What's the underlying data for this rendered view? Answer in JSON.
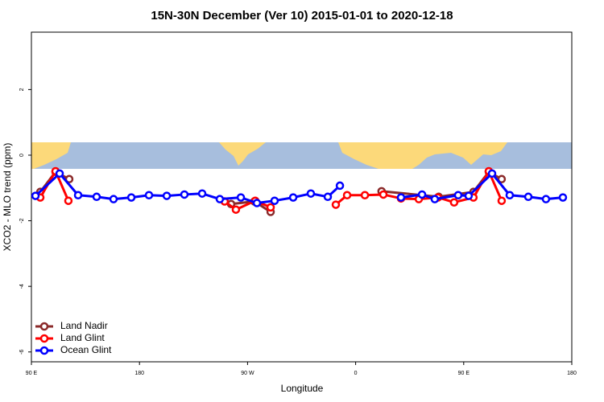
{
  "chart_data": {
    "type": "line",
    "title": "15N-30N December (Ver 10)   2015-01-01 to 2020-12-18",
    "x_label": "Longitude",
    "y_label": "XCO2 - MLO trend (ppm)",
    "xlim": [
      90,
      540
    ],
    "ylim": [
      -6.3,
      3.75
    ],
    "xticks": [
      {
        "value": 90,
        "label": "90 E"
      },
      180,
      {
        "value": 270,
        "label": "90 W"
      },
      {
        "value": 360,
        "label": "0"
      },
      {
        "value": 450,
        "label": "90 E"
      },
      {
        "value": 540,
        "label": "180"
      }
    ],
    "yticks": [
      -6,
      -4,
      -2,
      0,
      2
    ],
    "legend": "bottom-left",
    "series": [
      {
        "name": "Land Nadir",
        "color": "#8b2a2a",
        "x": [
          97.4,
          110.1,
          121.5,
          null,
          256.3,
          275.7,
          289.2,
          null,
          381.6,
          429.2,
          458.1,
          470.9,
          481.6
        ],
        "values": [
          -1.12,
          -0.51,
          -0.73,
          null,
          -1.49,
          -1.41,
          -1.73,
          null,
          -1.1,
          -1.27,
          -1.12,
          -0.51,
          -0.73
        ]
      },
      {
        "name": "Land Glint",
        "color": "#ff0000",
        "x": [
          97.4,
          110.1,
          120.8,
          null,
          250.9,
          260.3,
          276.4,
          289.2,
          null,
          343.5,
          352.9,
          367.7,
          383.1,
          397.8,
          412.6,
          428.5,
          442.0,
          458.1,
          470.9,
          481.6
        ],
        "values": [
          -1.29,
          -0.49,
          -1.39,
          null,
          -1.41,
          -1.66,
          -1.39,
          -1.59,
          null,
          -1.51,
          -1.22,
          -1.22,
          -1.2,
          -1.32,
          -1.34,
          -1.29,
          -1.44,
          -1.29,
          -0.49,
          -1.39
        ]
      },
      {
        "name": "Ocean Glint",
        "color": "#0000ff",
        "x": [
          93.4,
          113.5,
          128.9,
          144.3,
          158.4,
          173.2,
          187.9,
          202.7,
          217.4,
          232.2,
          246.9,
          264.4,
          277.8,
          292.5,
          308.0,
          322.7,
          336.8,
          346.9,
          null,
          397.8,
          415.3,
          425.9,
          445.4,
          454.1,
          473.6,
          488.3,
          503.8,
          518.5,
          532.6
        ],
        "values": [
          -1.24,
          -0.56,
          -1.22,
          -1.27,
          -1.34,
          -1.29,
          -1.22,
          -1.24,
          -1.2,
          -1.17,
          -1.34,
          -1.29,
          -1.46,
          -1.39,
          -1.29,
          -1.17,
          -1.27,
          -0.93,
          null,
          -1.29,
          -1.2,
          -1.34,
          -1.22,
          -1.24,
          -0.56,
          -1.22,
          -1.27,
          -1.34,
          -1.29
        ]
      }
    ]
  }
}
